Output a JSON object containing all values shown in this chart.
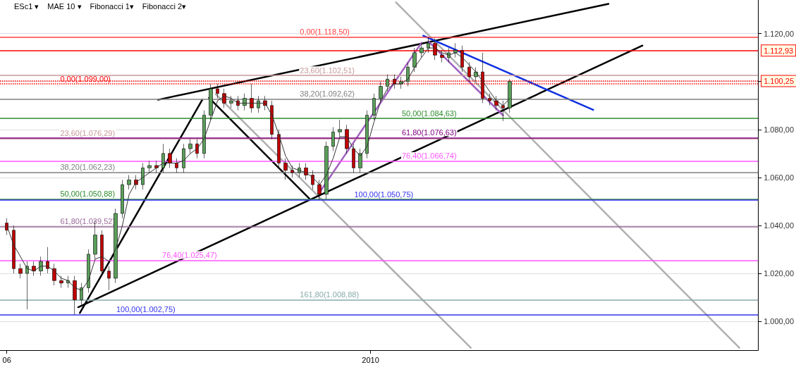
{
  "chart_data": {
    "type": "candlestick",
    "xlim": [
      "2009-05-28",
      "2010-08-17"
    ],
    "xticks": [
      {
        "value": "2009-06-01",
        "label": "06"
      },
      {
        "value": "2010-01-01",
        "label": "2010"
      }
    ],
    "ylim": [
      988,
      1134
    ],
    "yticks": [
      {
        "value": 1000,
        "label": "1.000,00"
      },
      {
        "value": 1020,
        "label": "1.020,00"
      },
      {
        "value": 1040,
        "label": "1.040,00"
      },
      {
        "value": 1060,
        "label": "1.060,00"
      },
      {
        "value": 1080,
        "label": "1.080,00"
      },
      {
        "value": 1100,
        "label": null
      },
      {
        "value": 1120,
        "label": "1.120,00"
      }
    ],
    "grid": "y",
    "marker": "none",
    "x": [
      "2009-06-01",
      "2009-06-05",
      "2009-06-09",
      "2009-06-13",
      "2009-06-17",
      "2009-06-21",
      "2009-06-25",
      "2009-06-29",
      "2009-07-03",
      "2009-07-07",
      "2009-07-11",
      "2009-07-15",
      "2009-07-19",
      "2009-07-23",
      "2009-07-27",
      "2009-07-31",
      "2009-08-04",
      "2009-08-08",
      "2009-08-12",
      "2009-08-16",
      "2009-08-20",
      "2009-08-24",
      "2009-08-28",
      "2009-09-01",
      "2009-09-05",
      "2009-09-09",
      "2009-09-13",
      "2009-09-17",
      "2009-09-21",
      "2009-09-25",
      "2009-09-29",
      "2009-10-03",
      "2009-10-07",
      "2009-10-11",
      "2009-10-15",
      "2009-10-19",
      "2009-10-23",
      "2009-10-27",
      "2009-10-31",
      "2009-11-04",
      "2009-11-08",
      "2009-11-12",
      "2009-11-16",
      "2009-11-20",
      "2009-11-24",
      "2009-11-28",
      "2009-12-02",
      "2009-12-06",
      "2009-12-10",
      "2009-12-14",
      "2009-12-18",
      "2009-12-22",
      "2009-12-26",
      "2009-12-30",
      "2010-01-03",
      "2010-01-07",
      "2010-01-11",
      "2010-01-15",
      "2010-01-19",
      "2010-01-23",
      "2010-01-27",
      "2010-01-31",
      "2010-02-04",
      "2010-02-08",
      "2010-02-12",
      "2010-02-16",
      "2010-02-20",
      "2010-02-24",
      "2010-02-28",
      "2010-03-04",
      "2010-03-08",
      "2010-03-12",
      "2010-03-16",
      "2010-03-20",
      "2010-03-24"
    ],
    "series": [
      {
        "ohlc": [
          [
            1041,
            1043,
            1036,
            1038
          ],
          [
            1038,
            1040,
            1020,
            1022
          ],
          [
            1022,
            1024,
            1018,
            1020
          ],
          [
            1020,
            1025,
            1005,
            1023
          ],
          [
            1023,
            1025,
            1019,
            1021
          ],
          [
            1021,
            1027,
            1019,
            1025
          ],
          [
            1025,
            1031,
            1020,
            1022
          ],
          [
            1022,
            1024,
            1015,
            1017
          ],
          [
            1017,
            1019,
            1014,
            1016
          ],
          [
            1016,
            1019,
            1014,
            1017
          ],
          [
            1017,
            1019,
            1002.75,
            1009
          ],
          [
            1009,
            1016,
            1007,
            1014
          ],
          [
            1014,
            1030,
            1012,
            1028
          ],
          [
            1028,
            1042,
            1026,
            1036
          ],
          [
            1036,
            1038,
            1019,
            1021
          ],
          [
            1021,
            1023,
            1013,
            1018
          ],
          [
            1018,
            1047,
            1016,
            1045
          ],
          [
            1045,
            1059,
            1043,
            1057
          ],
          [
            1057,
            1061,
            1055,
            1059
          ],
          [
            1059,
            1061,
            1055,
            1057
          ],
          [
            1057,
            1066,
            1055,
            1064
          ],
          [
            1064,
            1067,
            1062,
            1065
          ],
          [
            1065,
            1067,
            1062,
            1064
          ],
          [
            1064,
            1074,
            1062,
            1070
          ],
          [
            1070,
            1072,
            1064,
            1066
          ],
          [
            1066,
            1068,
            1062,
            1064
          ],
          [
            1064,
            1074,
            1062,
            1072
          ],
          [
            1072,
            1076,
            1070,
            1074
          ],
          [
            1074,
            1076,
            1068,
            1070
          ],
          [
            1070,
            1088,
            1068,
            1086
          ],
          [
            1086,
            1099,
            1084,
            1097
          ],
          [
            1097,
            1099,
            1093,
            1095
          ],
          [
            1095,
            1097,
            1089,
            1091
          ],
          [
            1091,
            1094,
            1089,
            1092
          ],
          [
            1092,
            1094,
            1088,
            1090
          ],
          [
            1090,
            1095,
            1088,
            1093
          ],
          [
            1093,
            1099,
            1087,
            1089
          ],
          [
            1089,
            1094,
            1087,
            1092
          ],
          [
            1092,
            1094,
            1088,
            1090
          ],
          [
            1090,
            1092,
            1076,
            1078
          ],
          [
            1078,
            1080,
            1064,
            1066
          ],
          [
            1066,
            1068,
            1059,
            1063
          ],
          [
            1063,
            1065,
            1060,
            1062
          ],
          [
            1062,
            1066,
            1060,
            1064
          ],
          [
            1064,
            1066,
            1059,
            1061
          ],
          [
            1061,
            1063,
            1055,
            1057
          ],
          [
            1057,
            1059,
            1050.75,
            1053
          ],
          [
            1053,
            1075,
            1051,
            1073
          ],
          [
            1073,
            1081,
            1071,
            1079
          ],
          [
            1079,
            1084,
            1077,
            1080
          ],
          [
            1080,
            1082,
            1070,
            1072
          ],
          [
            1072,
            1074,
            1062,
            1064
          ],
          [
            1064,
            1072,
            1062,
            1070
          ],
          [
            1070,
            1088,
            1068,
            1086
          ],
          [
            1086,
            1095,
            1084,
            1093
          ],
          [
            1093,
            1100,
            1091,
            1098
          ],
          [
            1098,
            1103,
            1096,
            1101
          ],
          [
            1101,
            1103,
            1097,
            1099
          ],
          [
            1099,
            1102,
            1097,
            1100
          ],
          [
            1100,
            1108,
            1098,
            1106
          ],
          [
            1106,
            1114,
            1104,
            1112
          ],
          [
            1112,
            1116,
            1110,
            1114
          ],
          [
            1114,
            1118.5,
            1112,
            1116
          ],
          [
            1116,
            1118,
            1109,
            1111
          ],
          [
            1111,
            1113,
            1108,
            1110
          ],
          [
            1110,
            1114,
            1108,
            1112
          ],
          [
            1112,
            1116,
            1110,
            1113
          ],
          [
            1113,
            1115,
            1104,
            1106
          ],
          [
            1106,
            1108,
            1100,
            1102
          ],
          [
            1102,
            1106,
            1100,
            1104
          ],
          [
            1104,
            1112,
            1091,
            1093
          ],
          [
            1093,
            1095,
            1090,
            1092
          ],
          [
            1092,
            1094,
            1088,
            1090
          ],
          [
            1090,
            1092,
            1083.5,
            1089
          ],
          [
            1089,
            1101,
            1087,
            1100
          ]
        ],
        "colors": [
          "#c00000",
          "#c00000",
          "#c00000",
          "#5a9e5a",
          "#c00000",
          "#5a9e5a",
          "#c00000",
          "#c00000",
          "#c00000",
          "#5a9e5a",
          "#c00000",
          "#5a9e5a",
          "#5a9e5a",
          "#5a9e5a",
          "#c00000",
          "#c00000",
          "#5a9e5a",
          "#5a9e5a",
          "#5a9e5a",
          "#c00000",
          "#5a9e5a",
          "#5a9e5a",
          "#c00000",
          "#5a9e5a",
          "#c00000",
          "#c00000",
          "#5a9e5a",
          "#5a9e5a",
          "#c00000",
          "#5a9e5a",
          "#5a9e5a",
          "#c00000",
          "#c00000",
          "#5a9e5a",
          "#c00000",
          "#5a9e5a",
          "#c00000",
          "#5a9e5a",
          "#c00000",
          "#c00000",
          "#c00000",
          "#c00000",
          "#c00000",
          "#5a9e5a",
          "#c00000",
          "#c00000",
          "#c00000",
          "#5a9e5a",
          "#5a9e5a",
          "#5a9e5a",
          "#c00000",
          "#c00000",
          "#5a9e5a",
          "#5a9e5a",
          "#5a9e5a",
          "#5a9e5a",
          "#5a9e5a",
          "#c00000",
          "#5a9e5a",
          "#5a9e5a",
          "#5a9e5a",
          "#5a9e5a",
          "#5a9e5a",
          "#c00000",
          "#c00000",
          "#5a9e5a",
          "#5a9e5a",
          "#c00000",
          "#c00000",
          "#5a9e5a",
          "#c00000",
          "#c00000",
          "#c00000",
          "#c00000",
          "#5a9e5a"
        ]
      },
      {
        "type": "line",
        "color": "#333333",
        "values": [
          1040,
          1032,
          1027,
          1022,
          1021,
          1023,
          1023,
          1021,
          1018,
          1017,
          1014,
          1013,
          1017,
          1026,
          1027,
          1025,
          1030,
          1040,
          1053,
          1058,
          1060,
          1062,
          1064,
          1066,
          1066,
          1066,
          1067,
          1070,
          1072,
          1076,
          1084,
          1092,
          1094,
          1093,
          1091,
          1091,
          1091,
          1091,
          1091,
          1086,
          1078,
          1069,
          1064,
          1063,
          1062,
          1060,
          1057,
          1061,
          1068,
          1077,
          1077,
          1072,
          1069,
          1073,
          1083,
          1092,
          1097,
          1099,
          1099,
          1101,
          1106,
          1110,
          1114,
          1114,
          1112,
          1111,
          1112,
          1110,
          1107,
          1104,
          1100,
          1096,
          1092,
          1090,
          1093
        ]
      },
      {
        "type": "line",
        "color": "#b0b0b0",
        "x": [
          "2009-10-02",
          "2010-03-01"
        ],
        "values": [
          1094.7,
          989
        ]
      },
      {
        "type": "line",
        "color": "#b0b0b0",
        "x": [
          "2010-01-16",
          "2010-08-06"
        ],
        "values": [
          1133,
          989
        ]
      },
      {
        "type": "line",
        "color": "#000000",
        "x": [
          "2009-08-29",
          "2010-05-21"
        ],
        "values": [
          1092.4,
          1132.4
        ]
      },
      {
        "type": "line",
        "color": "#000000",
        "x": [
          "2009-07-13",
          "2010-06-10"
        ],
        "values": [
          1005.9,
          1115
        ]
      },
      {
        "type": "line",
        "color": "#000000",
        "x": [
          "2009-07-14",
          "2009-09-24"
        ],
        "values": [
          1003.5,
          1092.4
        ]
      },
      {
        "type": "line",
        "color": "#000000",
        "x": [
          "2009-09-28",
          "2009-11-26"
        ],
        "values": [
          1093.2,
          1051.2
        ]
      },
      {
        "type": "line",
        "color": "#a060c0",
        "x": [
          "2009-12-02",
          "2010-01-31"
        ],
        "values": [
          1053.8,
          1116.2
        ]
      },
      {
        "type": "line",
        "color": "#a060c0",
        "x": [
          "2010-02-04",
          "2010-03-20"
        ],
        "values": [
          1116.8,
          1085.9
        ]
      },
      {
        "type": "line",
        "color": "#1030e0",
        "x": [
          "2010-02-01",
          "2010-05-12"
        ],
        "values": [
          1119.1,
          1088.2
        ]
      }
    ],
    "ref_lines": [
      {
        "axis": "y",
        "value": 1099,
        "color": "#ff0000",
        "line_style": "dotted"
      },
      {
        "axis": "y",
        "value": 1076.29,
        "color": "#c89a9a"
      },
      {
        "axis": "y",
        "value": 1062.23,
        "color": "#808080"
      },
      {
        "axis": "y",
        "value": 1050.88,
        "color": "#2e8b2e"
      },
      {
        "axis": "y",
        "value": 1039.52,
        "color": "#9a6a9a"
      },
      {
        "axis": "y",
        "value": 1025.47,
        "color": "#ff55ff"
      },
      {
        "axis": "y",
        "value": 1002.75,
        "color": "#3333ee"
      },
      {
        "axis": "y",
        "value": 1118.5,
        "color": "#ff4040"
      },
      {
        "axis": "y",
        "value": 1102.51,
        "color": "#c89a9a"
      },
      {
        "axis": "y",
        "value": 1092.62,
        "color": "#808080"
      },
      {
        "axis": "y",
        "value": 1084.63,
        "color": "#2e8b2e"
      },
      {
        "axis": "y",
        "value": 1076.63,
        "color": "#800080"
      },
      {
        "axis": "y",
        "value": 1066.74,
        "color": "#ff55ff"
      },
      {
        "axis": "y",
        "value": 1050.75,
        "color": "#3333ee"
      },
      {
        "axis": "y",
        "value": 1008.88,
        "color": "#88aaaa"
      },
      {
        "axis": "y",
        "value": 1112.93,
        "color": "#ff0000",
        "label": "1.112,93"
      },
      {
        "axis": "y",
        "value": 1100.25,
        "color": "#ff0000",
        "line_style": "dotted",
        "label": "1.100,25"
      }
    ],
    "annotations": [
      "ESc1 ▾",
      "MAE 10 ▾",
      "Fibonacci 1▾",
      "Fibonacci 2▾",
      {
        "text": "0,00(1.099,00)",
        "x": "2009-07-02",
        "y": 1099
      },
      {
        "text": "23,60(1.076,29)",
        "x": "2009-07-02",
        "y": 1076.29
      },
      {
        "text": "38,20(1.062,23)",
        "x": "2009-07-02",
        "y": 1062.23
      },
      {
        "text": "50,00(1.050,88)",
        "x": "2009-07-02",
        "y": 1050.88
      },
      {
        "text": "61,80(1.039,52)",
        "x": "2009-07-02",
        "y": 1039.52
      },
      {
        "text": "76,40(1.025,47)",
        "x": "2009-08-31",
        "y": 1025.47
      },
      {
        "text": "100,00(1.002,75)",
        "x": "2009-08-04",
        "y": 1002.75
      },
      {
        "text": "0,00(1.118,50)",
        "x": "2009-11-20",
        "y": 1118.5
      },
      {
        "text": "23,60(1.102,51)",
        "x": "2009-11-20",
        "y": 1102.51
      },
      {
        "text": "38,20(1.092,62)",
        "x": "2009-11-20",
        "y": 1092.62
      },
      {
        "text": "50,00(1.084,63)",
        "x": "2010-01-19",
        "y": 1084.63
      },
      {
        "text": "61,80(1.076,63)",
        "x": "2010-01-19",
        "y": 1076.63
      },
      {
        "text": "76,40(1.066,74)",
        "x": "2010-01-19",
        "y": 1066.74
      },
      {
        "text": "100,00(1.050,75)",
        "x": "2009-12-22",
        "y": 1050.75
      },
      {
        "text": "161,80(1.008,88)",
        "x": "2009-11-20",
        "y": 1008.88
      }
    ]
  }
}
